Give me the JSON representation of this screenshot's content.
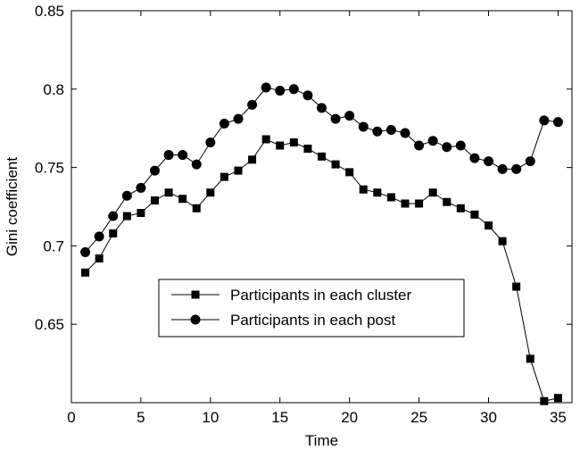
{
  "chart_data": {
    "type": "line",
    "xlabel": "Time",
    "ylabel": "Gini coefficient",
    "xlim": [
      0,
      36
    ],
    "ylim": [
      0.6,
      0.85
    ],
    "x_ticks": [
      0,
      5,
      10,
      15,
      20,
      25,
      30,
      35
    ],
    "y_ticks": [
      0.65,
      0.7,
      0.75,
      0.8,
      0.85
    ],
    "x_tick_labels": [
      "0",
      "5",
      "10",
      "15",
      "20",
      "25",
      "30",
      "35"
    ],
    "y_tick_labels": [
      "0.65",
      "0.7",
      "0.75",
      "0.8",
      "0.85"
    ],
    "grid": false,
    "legend_position": "center-left",
    "x": [
      1,
      2,
      3,
      4,
      5,
      6,
      7,
      8,
      9,
      10,
      11,
      12,
      13,
      14,
      15,
      16,
      17,
      18,
      19,
      20,
      21,
      22,
      23,
      24,
      25,
      26,
      27,
      28,
      29,
      30,
      31,
      32,
      33,
      34,
      35
    ],
    "series": [
      {
        "name": "Participants in each cluster",
        "marker": "square",
        "color": "#000000",
        "values": [
          0.683,
          0.692,
          0.708,
          0.719,
          0.721,
          0.729,
          0.734,
          0.73,
          0.724,
          0.734,
          0.744,
          0.748,
          0.755,
          0.768,
          0.764,
          0.766,
          0.762,
          0.757,
          0.752,
          0.747,
          0.736,
          0.734,
          0.731,
          0.727,
          0.727,
          0.734,
          0.728,
          0.724,
          0.72,
          0.713,
          0.703,
          0.674,
          0.628,
          0.601,
          0.603
        ]
      },
      {
        "name": "Participants in each post",
        "marker": "circle",
        "color": "#000000",
        "values": [
          0.696,
          0.706,
          0.719,
          0.732,
          0.737,
          0.748,
          0.758,
          0.758,
          0.752,
          0.766,
          0.778,
          0.781,
          0.79,
          0.801,
          0.799,
          0.8,
          0.796,
          0.788,
          0.781,
          0.783,
          0.776,
          0.773,
          0.774,
          0.772,
          0.764,
          0.767,
          0.763,
          0.764,
          0.756,
          0.754,
          0.749,
          0.749,
          0.754,
          0.78,
          0.779
        ]
      }
    ]
  }
}
